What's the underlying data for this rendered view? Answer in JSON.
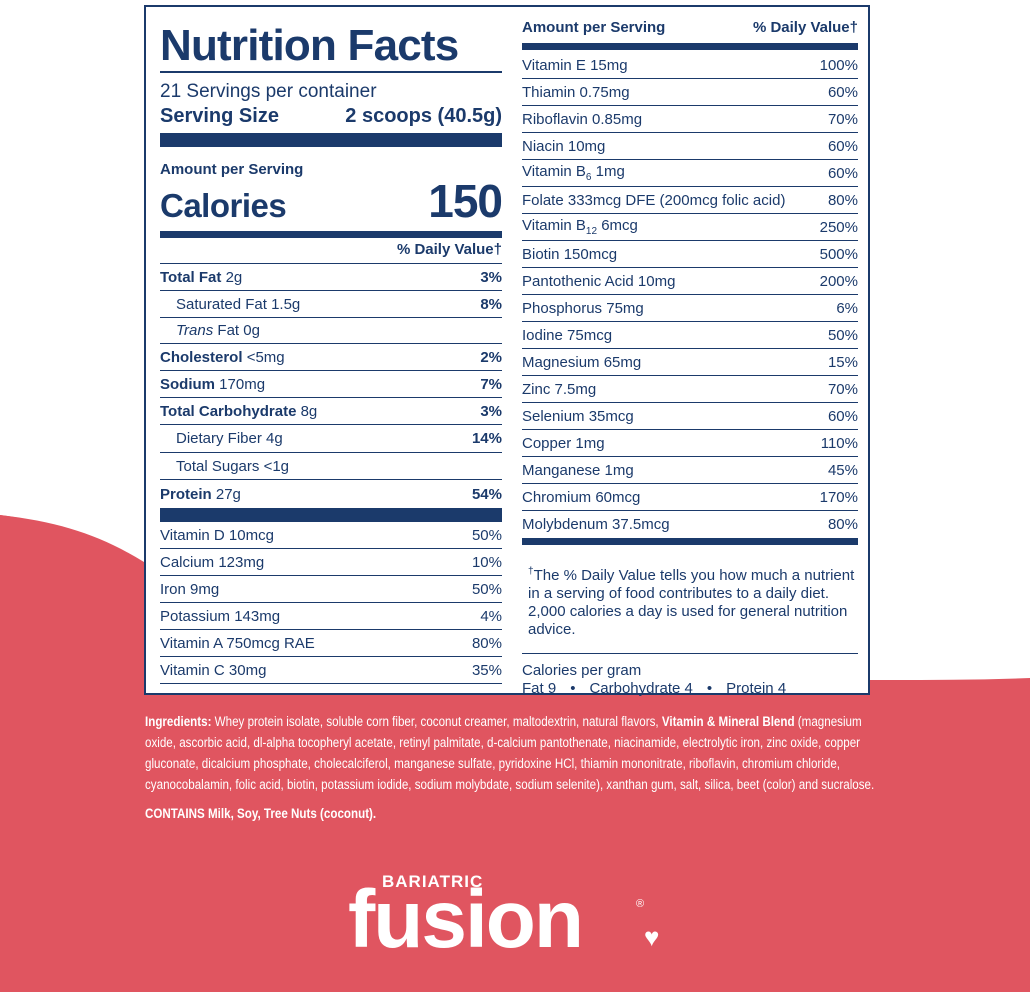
{
  "colors": {
    "navy": "#1b3a6b",
    "coral": "#e05560",
    "white": "#ffffff"
  },
  "left": {
    "title": "Nutrition Facts",
    "servings": "21 Servings per container",
    "serving_size_label": "Serving Size",
    "serving_size_value": "2 scoops (40.5g)",
    "amount_per_serving": "Amount per Serving",
    "calories_label": "Calories",
    "calories_value": "150",
    "dv_header": "% Daily Value†",
    "nutrients": [
      {
        "name": "Total Fat",
        "amount": "2g",
        "pct": "3%"
      },
      {
        "name": "Saturated Fat",
        "amount": "1.5g",
        "pct": "8%"
      },
      {
        "name": "Trans",
        "amount": "Fat 0g",
        "pct": ""
      },
      {
        "name": "Cholesterol",
        "amount": "<5mg",
        "pct": "2%"
      },
      {
        "name": "Sodium",
        "amount": "170mg",
        "pct": "7%"
      },
      {
        "name": "Total Carbohydrate",
        "amount": "8g",
        "pct": "3%"
      },
      {
        "name": "Dietary Fiber",
        "amount": "4g",
        "pct": "14%"
      },
      {
        "name": "Total Sugars",
        "amount": "<1g",
        "pct": ""
      },
      {
        "name": "Protein",
        "amount": "27g",
        "pct": "54%"
      }
    ],
    "vitamins": [
      {
        "name": "Vitamin D 10mcg",
        "pct": "50%"
      },
      {
        "name": "Calcium 123mg",
        "pct": "10%"
      },
      {
        "name": "Iron 9mg",
        "pct": "50%"
      },
      {
        "name": "Potassium 143mg",
        "pct": "4%"
      },
      {
        "name": "Vitamin A 750mcg RAE",
        "pct": "80%"
      },
      {
        "name": "Vitamin C 30mg",
        "pct": "35%"
      }
    ]
  },
  "right": {
    "amount_per_serving": "Amount per Serving",
    "dv_header": "% Daily Value†",
    "vitamins": [
      {
        "name": "Vitamin E 15mg",
        "pct": "100%"
      },
      {
        "name": "Thiamin 0.75mg",
        "pct": "60%"
      },
      {
        "name": "Riboflavin 0.85mg",
        "pct": "70%"
      },
      {
        "name": "Niacin 10mg",
        "pct": "60%"
      },
      {
        "name": "Vitamin B",
        "sub": "6",
        "rest": " 1mg",
        "pct": "60%"
      },
      {
        "name": "Folate 333mcg DFE (200mcg folic acid)",
        "pct": "80%"
      },
      {
        "name": "Vitamin B",
        "sub": "12",
        "rest": " 6mcg",
        "pct": "250%"
      },
      {
        "name": "Biotin 150mcg",
        "pct": "500%"
      },
      {
        "name": "Pantothenic Acid 10mg",
        "pct": "200%"
      },
      {
        "name": "Phosphorus 75mg",
        "pct": "6%"
      },
      {
        "name": "Iodine 75mcg",
        "pct": "50%"
      },
      {
        "name": "Magnesium 65mg",
        "pct": "15%"
      },
      {
        "name": "Zinc 7.5mg",
        "pct": "70%"
      },
      {
        "name": "Selenium 35mcg",
        "pct": "60%"
      },
      {
        "name": "Copper 1mg",
        "pct": "110%"
      },
      {
        "name": "Manganese 1mg",
        "pct": "45%"
      },
      {
        "name": "Chromium 60mcg",
        "pct": "170%"
      },
      {
        "name": "Molybdenum 37.5mcg",
        "pct": "80%"
      }
    ],
    "footnote_mark": "†",
    "footnote": "The % Daily Value tells you how much a nutrient in a serving of food contributes to a daily diet. 2,000 calories a day is used for general nutrition advice.",
    "cpg_title": "Calories per gram",
    "cpg_fat": "Fat 9",
    "cpg_carb": "Carbohydrate 4",
    "cpg_protein": "Protein 4",
    "bullet": "•"
  },
  "ingredients": {
    "label": "Ingredients:",
    "text1": " Whey protein isolate, soluble corn fiber, coconut creamer, maltodextrin, natural flavors, ",
    "blend_label": "Vitamin & Mineral Blend",
    "text2": " (magnesium oxide, ascorbic acid, dl-alpha tocopheryl acetate, retinyl palmitate, d-calcium pantothenate, niacinamide, electrolytic iron, zinc oxide, copper gluconate, dicalcium phosphate, cholecalciferol, manganese sulfate, pyridoxine HCl, thiamin mononitrate, riboflavin, chromium chloride, cyanocobalamin, folic acid, biotin, potassium iodide, sodium molybdate, sodium selenite), xanthan gum, salt, silica, beet (color) and sucralose.",
    "contains": "CONTAINS Milk, Soy, Tree Nuts (coconut)."
  },
  "logo": {
    "small": "BARIATRIC",
    "big": "fusion",
    "reg": "®"
  }
}
